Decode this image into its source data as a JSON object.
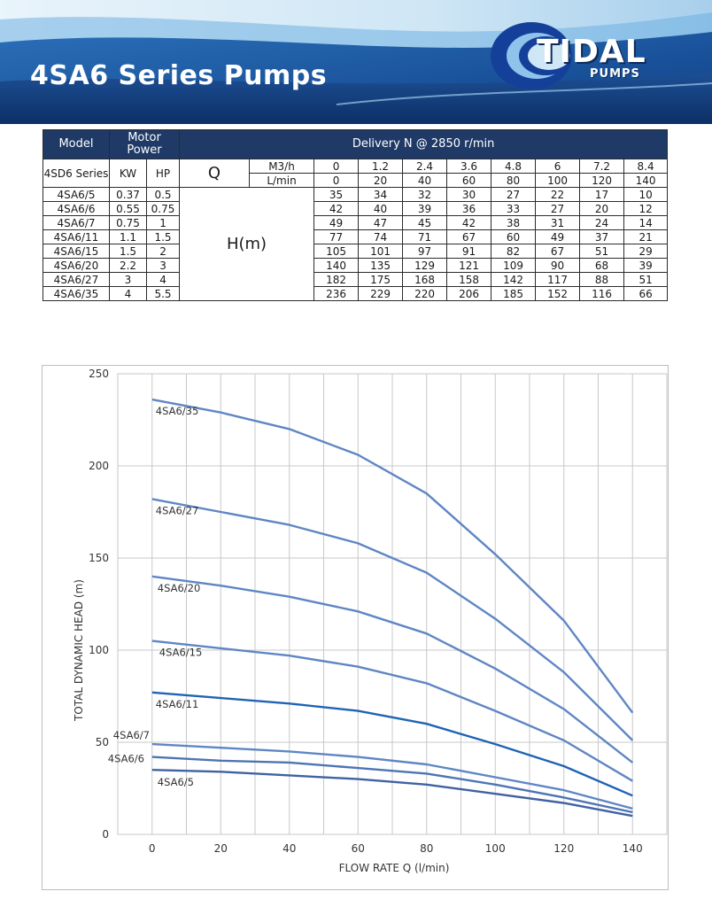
{
  "header": {
    "title": "4SA6 Series Pumps",
    "logo_text": "TIDAL",
    "logo_sub": "PUMPS"
  },
  "table": {
    "head_model": "Model",
    "head_motor_power": "Motor Power",
    "head_delivery": "Delivery N @ 2850 r/min",
    "series_label": "4SD6 Series",
    "kw_label": "KW",
    "hp_label": "HP",
    "q_label": "Q",
    "unit_m3h": "M3/h",
    "unit_lmin": "L/min",
    "h_label": "H(m)",
    "q_m3h": [
      "0",
      "1.2",
      "2.4",
      "3.6",
      "4.8",
      "6",
      "7.2",
      "8.4"
    ],
    "q_lmin": [
      "0",
      "20",
      "40",
      "60",
      "80",
      "100",
      "120",
      "140"
    ],
    "rows": [
      {
        "model": "4SA6/5",
        "kw": "0.37",
        "hp": "0.5",
        "h": [
          "35",
          "34",
          "32",
          "30",
          "27",
          "22",
          "17",
          "10"
        ]
      },
      {
        "model": "4SA6/6",
        "kw": "0.55",
        "hp": "0.75",
        "h": [
          "42",
          "40",
          "39",
          "36",
          "33",
          "27",
          "20",
          "12"
        ]
      },
      {
        "model": "4SA6/7",
        "kw": "0.75",
        "hp": "1",
        "h": [
          "49",
          "47",
          "45",
          "42",
          "38",
          "31",
          "24",
          "14"
        ]
      },
      {
        "model": "4SA6/11",
        "kw": "1.1",
        "hp": "1.5",
        "h": [
          "77",
          "74",
          "71",
          "67",
          "60",
          "49",
          "37",
          "21"
        ]
      },
      {
        "model": "4SA6/15",
        "kw": "1.5",
        "hp": "2",
        "h": [
          "105",
          "101",
          "97",
          "91",
          "82",
          "67",
          "51",
          "29"
        ]
      },
      {
        "model": "4SA6/20",
        "kw": "2.2",
        "hp": "3",
        "h": [
          "140",
          "135",
          "129",
          "121",
          "109",
          "90",
          "68",
          "39"
        ]
      },
      {
        "model": "4SA6/27",
        "kw": "3",
        "hp": "4",
        "h": [
          "182",
          "175",
          "168",
          "158",
          "142",
          "117",
          "88",
          "51"
        ]
      },
      {
        "model": "4SA6/35",
        "kw": "4",
        "hp": "5.5",
        "h": [
          "236",
          "229",
          "220",
          "206",
          "185",
          "152",
          "116",
          "66"
        ]
      }
    ]
  },
  "chart_data": {
    "type": "line",
    "title": "",
    "xlabel": "FLOW RATE Q (l/min)",
    "ylabel": "TOTAL DYNAMIC HEAD (m)",
    "x": [
      0,
      20,
      40,
      60,
      80,
      100,
      120,
      140
    ],
    "xticks": [
      0,
      20,
      40,
      60,
      80,
      100,
      120,
      140
    ],
    "yticks": [
      0,
      50,
      100,
      150,
      200,
      250
    ],
    "xlim": [
      -10,
      150
    ],
    "ylim": [
      0,
      250
    ],
    "grid": true,
    "series": [
      {
        "name": "4SA6/35",
        "values": [
          236,
          229,
          220,
          206,
          185,
          152,
          116,
          66
        ],
        "color": "#5f86c4"
      },
      {
        "name": "4SA6/27",
        "values": [
          182,
          175,
          168,
          158,
          142,
          117,
          88,
          51
        ],
        "color": "#5f86c4"
      },
      {
        "name": "4SA6/20",
        "values": [
          140,
          135,
          129,
          121,
          109,
          90,
          68,
          39
        ],
        "color": "#5f86c4"
      },
      {
        "name": "4SA6/15",
        "values": [
          105,
          101,
          97,
          91,
          82,
          67,
          51,
          29
        ],
        "color": "#5f86c4"
      },
      {
        "name": "4SA6/11",
        "values": [
          77,
          74,
          71,
          67,
          60,
          49,
          37,
          21
        ],
        "color": "#1f64b4"
      },
      {
        "name": "4SA6/7",
        "values": [
          49,
          47,
          45,
          42,
          38,
          31,
          24,
          14
        ],
        "color": "#5f86c4"
      },
      {
        "name": "4SA6/6",
        "values": [
          42,
          40,
          39,
          36,
          33,
          27,
          20,
          12
        ],
        "color": "#4e74b4"
      },
      {
        "name": "4SA6/5",
        "values": [
          35,
          34,
          32,
          30,
          27,
          22,
          17,
          10
        ],
        "color": "#3f62a2"
      }
    ]
  }
}
